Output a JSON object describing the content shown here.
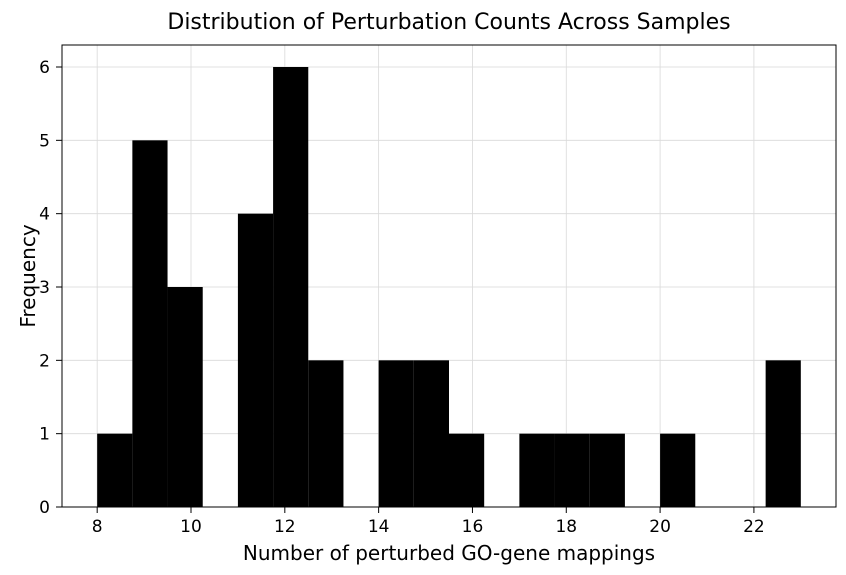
{
  "chart_data": {
    "type": "bar",
    "subtype": "histogram",
    "title": "Distribution of Perturbation Counts Across Samples",
    "xlabel": "Number of perturbed GO-gene mappings",
    "ylabel": "Frequency",
    "xlim": [
      7.25,
      23.75
    ],
    "ylim": [
      0,
      6.3
    ],
    "grid": true,
    "bar_color": "#000000",
    "x_ticks": [
      8,
      10,
      12,
      14,
      16,
      18,
      20,
      22
    ],
    "y_ticks": [
      0,
      1,
      2,
      3,
      4,
      5,
      6
    ],
    "bins": [
      {
        "start": 8.0,
        "end": 8.75,
        "count": 1
      },
      {
        "start": 8.75,
        "end": 9.5,
        "count": 5
      },
      {
        "start": 9.5,
        "end": 10.25,
        "count": 3
      },
      {
        "start": 10.25,
        "end": 11.0,
        "count": 0
      },
      {
        "start": 11.0,
        "end": 11.75,
        "count": 4
      },
      {
        "start": 11.75,
        "end": 12.5,
        "count": 6
      },
      {
        "start": 12.5,
        "end": 13.25,
        "count": 2
      },
      {
        "start": 13.25,
        "end": 14.0,
        "count": 0
      },
      {
        "start": 14.0,
        "end": 14.75,
        "count": 2
      },
      {
        "start": 14.75,
        "end": 15.5,
        "count": 2
      },
      {
        "start": 15.5,
        "end": 16.25,
        "count": 1
      },
      {
        "start": 16.25,
        "end": 17.0,
        "count": 0
      },
      {
        "start": 17.0,
        "end": 17.75,
        "count": 1
      },
      {
        "start": 17.75,
        "end": 18.5,
        "count": 1
      },
      {
        "start": 18.5,
        "end": 19.25,
        "count": 1
      },
      {
        "start": 19.25,
        "end": 20.0,
        "count": 0
      },
      {
        "start": 20.0,
        "end": 20.75,
        "count": 1
      },
      {
        "start": 20.75,
        "end": 21.5,
        "count": 0
      },
      {
        "start": 21.5,
        "end": 22.25,
        "count": 0
      },
      {
        "start": 22.25,
        "end": 23.0,
        "count": 2
      }
    ]
  }
}
